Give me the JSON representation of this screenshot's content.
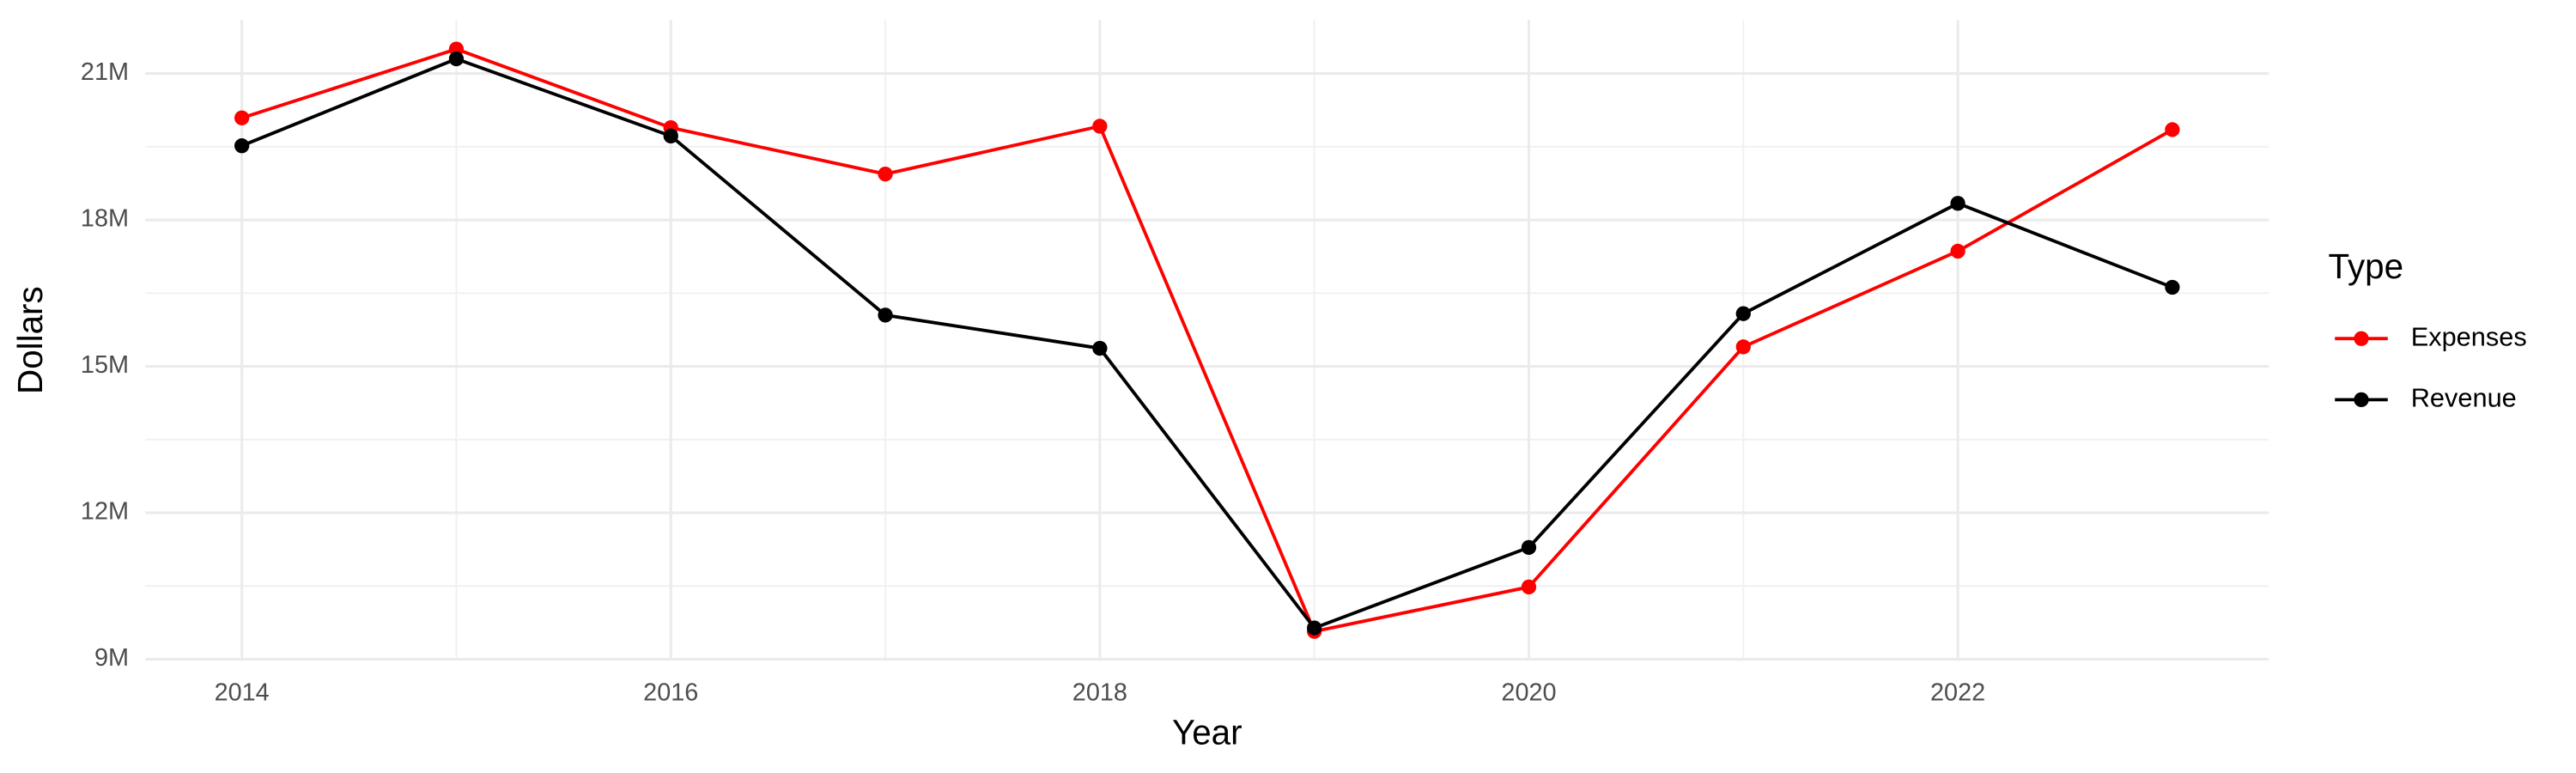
{
  "chart_data": {
    "type": "line",
    "x_label": "Year",
    "y_label": "Dollars",
    "legend_title": "Type",
    "legend_position": "right",
    "grid": true,
    "x": [
      2014,
      2015,
      2016,
      2017,
      2018,
      2019,
      2020,
      2021,
      2022,
      2023
    ],
    "series": [
      {
        "name": "Expenses",
        "color": "#ff0000",
        "values": [
          20090000,
          21500000,
          19890000,
          18940000,
          19920000,
          9570000,
          10480000,
          15400000,
          17360000,
          19850000
        ]
      },
      {
        "name": "Revenue",
        "color": "#000000",
        "values": [
          19520000,
          21300000,
          19720000,
          16050000,
          15370000,
          9640000,
          11290000,
          16080000,
          18340000,
          16620000
        ]
      }
    ],
    "xlim": [
      2013.55,
      2023.45
    ],
    "xticks": [
      2014,
      2016,
      2018,
      2020,
      2022
    ],
    "ylim": [
      8970000,
      22100000
    ],
    "yticks": [
      {
        "value": 9000000,
        "label": "9M"
      },
      {
        "value": 12000000,
        "label": "12M"
      },
      {
        "value": 15000000,
        "label": "15M"
      },
      {
        "value": 18000000,
        "label": "18M"
      },
      {
        "value": 21000000,
        "label": "21M"
      }
    ]
  }
}
